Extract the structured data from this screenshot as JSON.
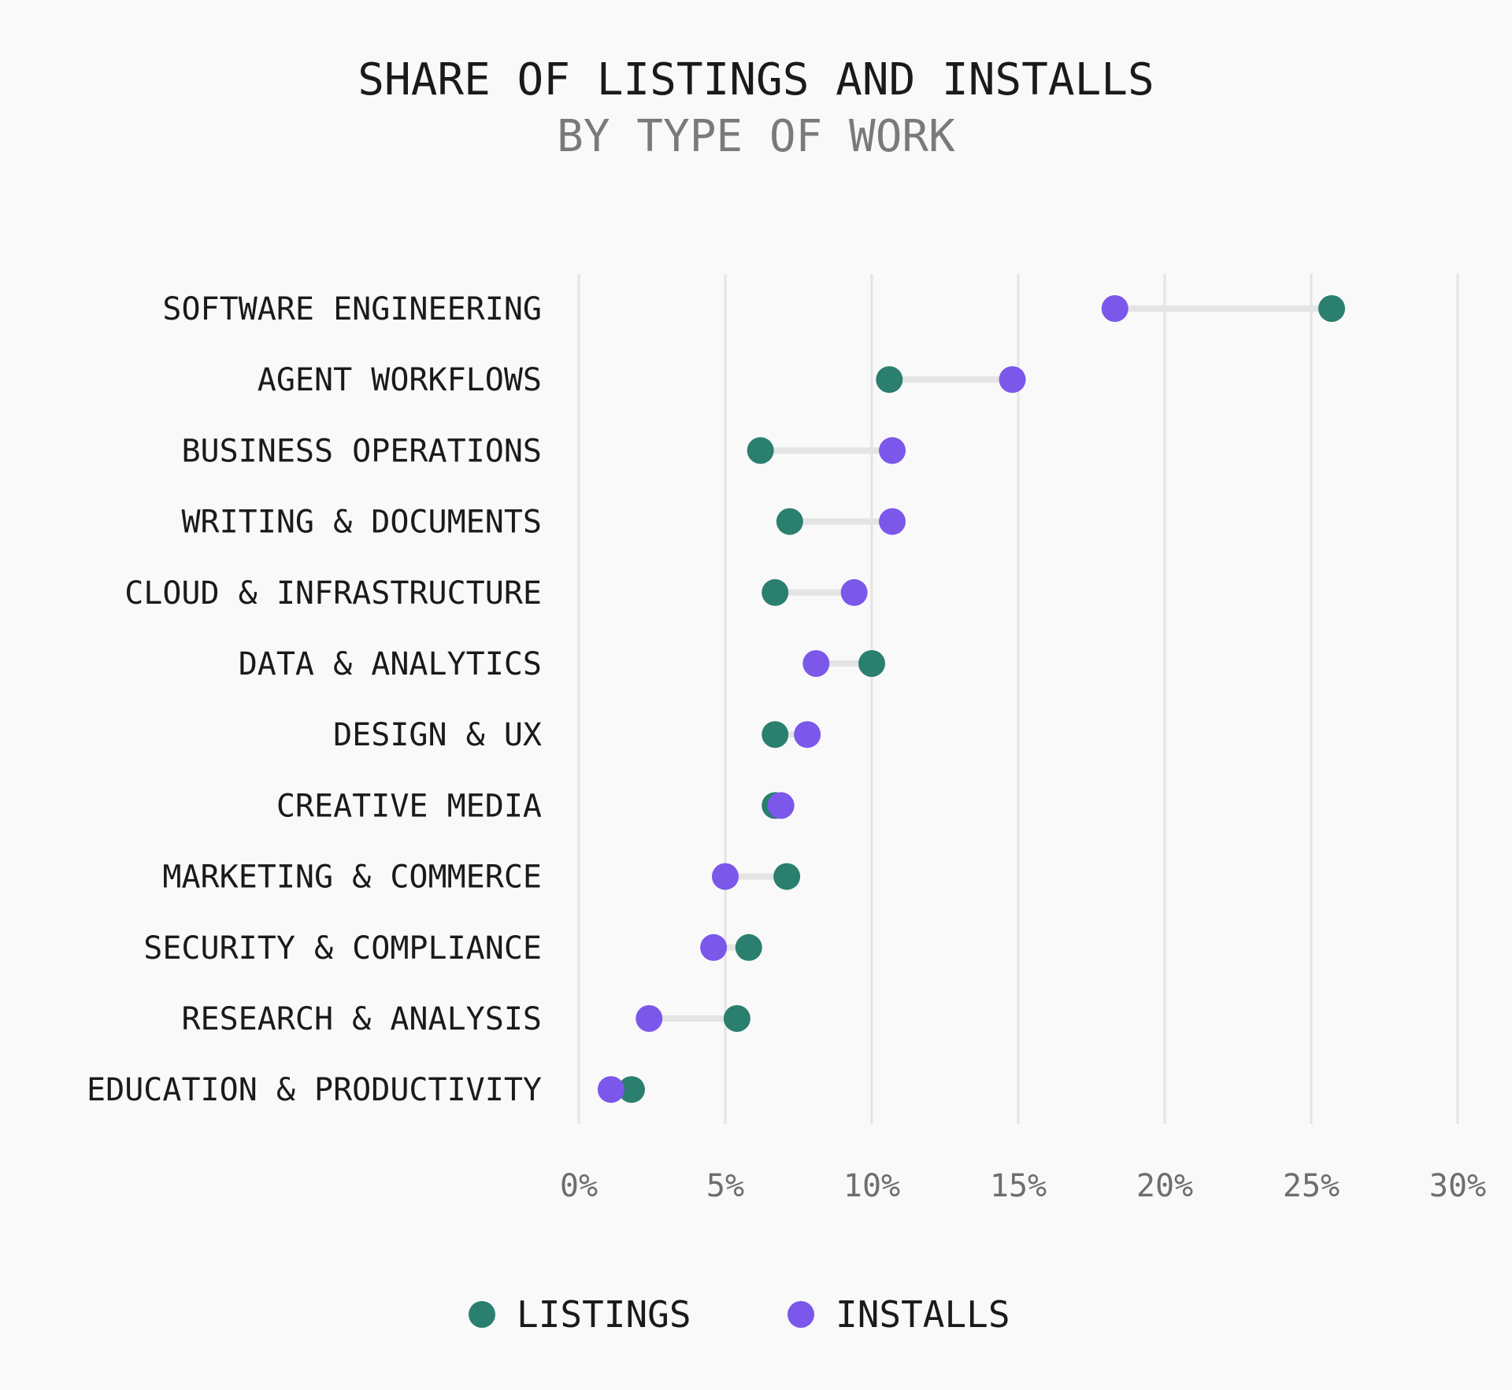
{
  "colors": {
    "background": "#f9f9f9",
    "listings": "#2a7f6f",
    "installs": "#7b57ea",
    "connector": "#e4e4e4",
    "grid": "#e4e4e4",
    "text": "#1a1a1a",
    "muted": "#7a7a7a"
  },
  "chart_data": {
    "type": "dumbbell",
    "title": "SHARE OF LISTINGS AND INSTALLS",
    "subtitle": "BY TYPE OF WORK",
    "xlim": [
      0,
      30
    ],
    "x_ticks": [
      0,
      5,
      10,
      15,
      20,
      25,
      30
    ],
    "x_tick_labels": [
      "0%",
      "5%",
      "10%",
      "15%",
      "20%",
      "25%",
      "30%"
    ],
    "grid": true,
    "legend_position": "bottom",
    "categories": [
      "SOFTWARE ENGINEERING",
      "AGENT WORKFLOWS",
      "BUSINESS OPERATIONS",
      "WRITING & DOCUMENTS",
      "CLOUD & INFRASTRUCTURE",
      "DATA & ANALYTICS",
      "DESIGN & UX",
      "CREATIVE MEDIA",
      "MARKETING & COMMERCE",
      "SECURITY & COMPLIANCE",
      "RESEARCH & ANALYSIS",
      "EDUCATION & PRODUCTIVITY"
    ],
    "series": [
      {
        "name": "LISTINGS",
        "color": "#2a7f6f",
        "values": [
          25.7,
          10.6,
          6.2,
          7.2,
          6.7,
          10.0,
          6.7,
          6.7,
          7.1,
          5.8,
          5.4,
          1.8
        ]
      },
      {
        "name": "INSTALLS",
        "color": "#7b57ea",
        "values": [
          18.3,
          14.8,
          10.7,
          10.7,
          9.4,
          8.1,
          7.8,
          6.9,
          5.0,
          4.6,
          2.4,
          1.1
        ]
      }
    ]
  }
}
